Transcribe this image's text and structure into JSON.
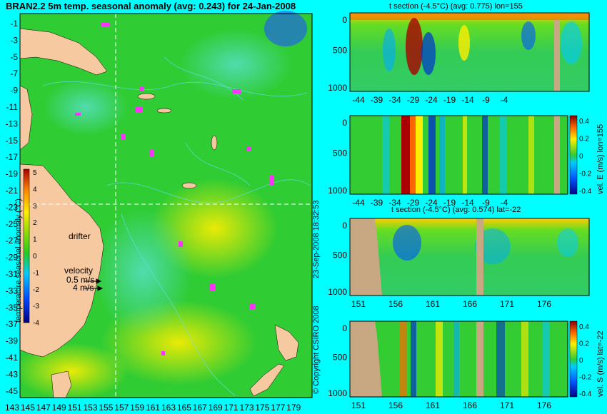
{
  "map": {
    "title": "BRAN2.2 5m temp. seasonal anomaly (avg: 0.243) for 24-Jan-2008",
    "y_ticks": [
      "-1",
      "-3",
      "-5",
      "-7",
      "-9",
      "-11",
      "-13",
      "-15",
      "-17",
      "-19",
      "-21",
      "-23",
      "-25",
      "-27",
      "-29",
      "-31",
      "-33",
      "-35",
      "-37",
      "-39",
      "-41",
      "-43",
      "-45"
    ],
    "x_ticks": [
      "143",
      "145",
      "147",
      "149",
      "151",
      "153",
      "155",
      "157",
      "159",
      "161",
      "163",
      "165",
      "167",
      "169",
      "171",
      "173",
      "175",
      "177",
      "179"
    ],
    "colorbar_label": "temperature seasonal anomaly (°C)",
    "colorbar_ticks": [
      "5",
      "4",
      "3",
      "2",
      "1",
      "0",
      "-1",
      "-2",
      "-3",
      "-4"
    ],
    "drifter_label": "drifter",
    "velocity_label": "velocity",
    "velocity_value": "0.5 m/s",
    "velocity_value2": "4 m/s",
    "copyright": "© Copyright CSIRO 2008",
    "timestamp": "23-Sep-2008 18:32:53"
  },
  "chart_data": [
    {
      "type": "heatmap",
      "title": "BRAN2.2 5m temp. seasonal anomaly (avg: 0.243) for 24-Jan-2008",
      "xlabel": "",
      "ylabel": "",
      "x_ticks": [
        143,
        145,
        147,
        149,
        151,
        153,
        155,
        157,
        159,
        161,
        163,
        165,
        167,
        169,
        171,
        173,
        175,
        177,
        179
      ],
      "y_ticks": [
        -1,
        -3,
        -5,
        -7,
        -9,
        -11,
        -13,
        -15,
        -17,
        -19,
        -21,
        -23,
        -25,
        -27,
        -29,
        -31,
        -33,
        -35,
        -37,
        -39,
        -41,
        -43,
        -45
      ],
      "xlim": [
        142.5,
        180
      ],
      "ylim": [
        -45,
        0
      ],
      "colorbar": {
        "label": "temperature seasonal anomaly (°C)",
        "range": [
          -4,
          5
        ]
      },
      "crosshair": {
        "lon": 155,
        "lat": -22
      }
    },
    {
      "type": "heatmap",
      "title": "t section (-4.5°C) (avg: 0.775) lon=155",
      "x_ticks": [
        -44,
        -39,
        -34,
        -29,
        -24,
        -19,
        -14,
        -9,
        -4
      ],
      "y_ticks": [
        500,
        1000
      ],
      "xlim": [
        -45,
        0
      ],
      "ylim": [
        1050,
        0
      ]
    },
    {
      "type": "heatmap",
      "title": "",
      "x_ticks": [
        -44,
        -39,
        -34,
        -29,
        -24,
        -19,
        -14,
        -9,
        -4
      ],
      "y_ticks": [
        500,
        1000
      ],
      "xlim": [
        -45,
        0
      ],
      "ylim": [
        1050,
        0
      ],
      "colorbar": {
        "label": "vel. E (m/s) lon=155",
        "ticks": [
          0.4,
          0.2,
          0,
          -0.2,
          -0.4
        ],
        "range": [
          -0.4,
          0.4
        ]
      }
    },
    {
      "type": "heatmap",
      "title": "t section (-4.5°C) (avg: 0.574) lat=-22",
      "x_ticks": [
        151,
        156,
        161,
        166,
        171,
        176
      ],
      "y_ticks": [
        500,
        1000
      ],
      "xlim": [
        150,
        180
      ],
      "ylim": [
        1050,
        0
      ]
    },
    {
      "type": "heatmap",
      "title": "",
      "x_ticks": [
        151,
        156,
        161,
        166,
        171,
        176
      ],
      "y_ticks": [
        500,
        1000
      ],
      "xlim": [
        150,
        180
      ],
      "ylim": [
        1050,
        0
      ],
      "colorbar": {
        "label": "vel. S (m/s) lat=-22",
        "ticks": [
          0.4,
          0.2,
          0,
          -0.2,
          -0.4
        ],
        "range": [
          -0.4,
          0.4
        ]
      }
    }
  ],
  "sections": {
    "s1_title": "t section (-4.5°C) (avg: 0.775) lon=155",
    "s3_title": "t section (-4.5°C) (avg: 0.574) lat=-22",
    "s2_cb_label": "vel. E (m/s) lon=155",
    "s4_cb_label": "vel. S (m/s) lat=-22",
    "depth_ticks": [
      "0",
      "500",
      "1000"
    ],
    "lat_ticks": [
      "-44",
      "-39",
      "-34",
      "-29",
      "-24",
      "-19",
      "-14",
      "-9",
      "-4"
    ],
    "lon_ticks": [
      "151",
      "156",
      "161",
      "166",
      "171",
      "176"
    ],
    "vel_ticks": [
      "0.4",
      "0.2",
      "0",
      "-0.2",
      "-0.4"
    ]
  },
  "colors": {
    "background": "#00ffff",
    "land": "#f7c9a0",
    "section_land": "#c8a882",
    "anomaly_base": "#33cc33",
    "contour": "#66ddee",
    "drifter": "#ff33ff"
  }
}
